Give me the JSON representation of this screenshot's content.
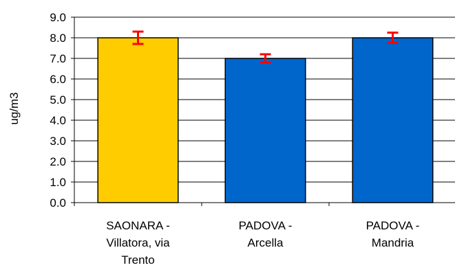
{
  "chart_data": {
    "type": "bar",
    "categories": [
      [
        "SAONARA -",
        "Villatora, via",
        "Trento"
      ],
      [
        "PADOVA -",
        "Arcella"
      ],
      [
        "PADOVA -",
        "Mandria"
      ]
    ],
    "values": [
      8.0,
      7.0,
      8.0
    ],
    "error_bars": [
      {
        "low": 7.7,
        "high": 8.3
      },
      {
        "low": 6.8,
        "high": 7.2
      },
      {
        "low": 7.75,
        "high": 8.25
      }
    ],
    "bar_colors": [
      "#FFCC00",
      "#0066CC",
      "#0066CC"
    ],
    "error_bar_color": "#FF0000",
    "ylabel": "ug/m3",
    "ylim": [
      0,
      9
    ],
    "ytick_step": 1.0,
    "ytick_labels": [
      "0.0",
      "1.0",
      "2.0",
      "3.0",
      "4.0",
      "5.0",
      "6.0",
      "7.0",
      "8.0",
      "9.0"
    ],
    "grid": true,
    "legend": false
  }
}
